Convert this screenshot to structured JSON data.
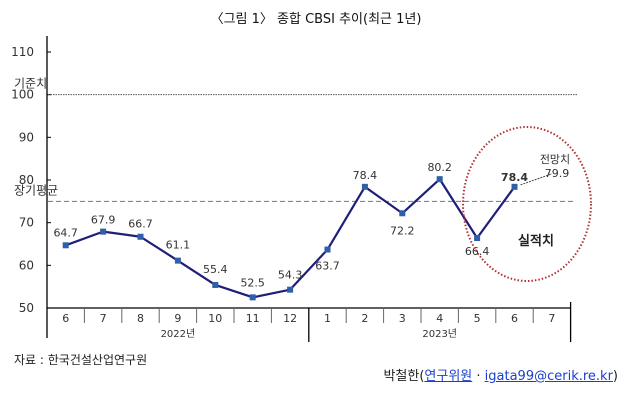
{
  "title": "〈그림 1〉 종합 CBSI 추이(최근 1년)",
  "source": "자료 : 한국건설산업연구원",
  "byline": {
    "name": "박철한(",
    "role": "연구위원",
    "separator": " · ",
    "email": "igata99@cerik.re.kr",
    "close": ")"
  },
  "chart_data": {
    "type": "line",
    "title": "〈그림 1〉 종합 CBSI 추이(최근 1년)",
    "xlabel": "",
    "ylabel": "",
    "ylim": [
      50,
      110
    ],
    "yticks": [
      110,
      100,
      90,
      80,
      70,
      60,
      50
    ],
    "categories": [
      "6",
      "7",
      "8",
      "9",
      "10",
      "11",
      "12",
      "1",
      "2",
      "3",
      "4",
      "5",
      "6",
      "7"
    ],
    "year_groups": [
      {
        "label": "2022년",
        "start": 0,
        "end": 6
      },
      {
        "label": "2023년",
        "start": 7,
        "end": 13
      }
    ],
    "series": [
      {
        "name": "종합 CBSI (실적치)",
        "color": "#1f1f7a",
        "marker_color": "#2e5fa8",
        "values": [
          64.7,
          67.9,
          66.7,
          61.1,
          55.4,
          52.5,
          54.3,
          63.7,
          78.4,
          72.2,
          80.2,
          66.4,
          78.4,
          null
        ],
        "labels": [
          "64.7",
          "67.9",
          "66.7",
          "61.1",
          "55.4",
          "52.5",
          "54.3",
          "63.7",
          "78.4",
          "72.2",
          "80.2",
          "66.4",
          "78.4",
          ""
        ]
      }
    ],
    "reference_lines": [
      {
        "name": "기준치",
        "value": 100,
        "style": "dotted"
      },
      {
        "name": "장기평균",
        "value": 75,
        "style": "dashed"
      }
    ],
    "annotations": [
      {
        "text": "전망치",
        "subtext": "79.9",
        "category_index": 12,
        "type": "forecast"
      },
      {
        "text": "실적치",
        "type": "circle-label",
        "circle_color": "#b03030"
      }
    ],
    "grid": false,
    "legend": "none"
  }
}
